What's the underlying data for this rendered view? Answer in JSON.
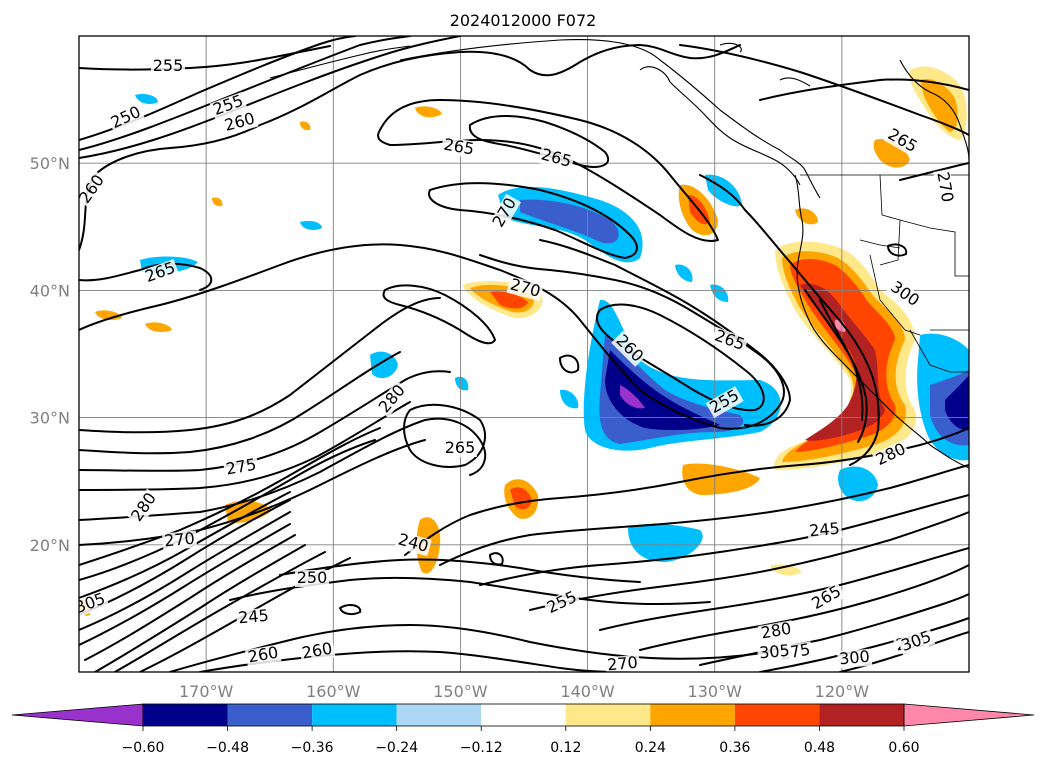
{
  "title": "2024012000 F072",
  "map": {
    "lon_ticks": [
      "170°W",
      "160°W",
      "150°W",
      "140°W",
      "130°W",
      "120°W"
    ],
    "lat_ticks": [
      "50°N",
      "40°N",
      "30°N",
      "20°N"
    ],
    "lon_range": [
      -180,
      -110
    ],
    "lat_range": [
      10,
      60
    ],
    "grid": true
  },
  "contour_labels": [
    "255",
    "250",
    "255",
    "260",
    "265",
    "265",
    "260",
    "270",
    "265",
    "270",
    "265",
    "260",
    "255",
    "280",
    "265",
    "275",
    "280",
    "270",
    "250",
    "245",
    "240",
    "280",
    "255",
    "245",
    "265",
    "280",
    "275",
    "265",
    "305",
    "300",
    "305",
    "260",
    "260",
    "270",
    "300",
    "265",
    "270",
    "305"
  ],
  "colorbar": {
    "ticks": [
      "−0.60",
      "−0.48",
      "−0.36",
      "−0.24",
      "−0.12",
      "0.12",
      "0.24",
      "0.36",
      "0.48",
      "0.60"
    ],
    "colors": [
      "#9932cc",
      "#00008b",
      "#3a5fcd",
      "#00bfff",
      "#add8f5",
      "#ffffff",
      "#ffe88a",
      "#ffa500",
      "#ff4500",
      "#b22222",
      "#ff88aa"
    ],
    "extend": "both"
  }
}
